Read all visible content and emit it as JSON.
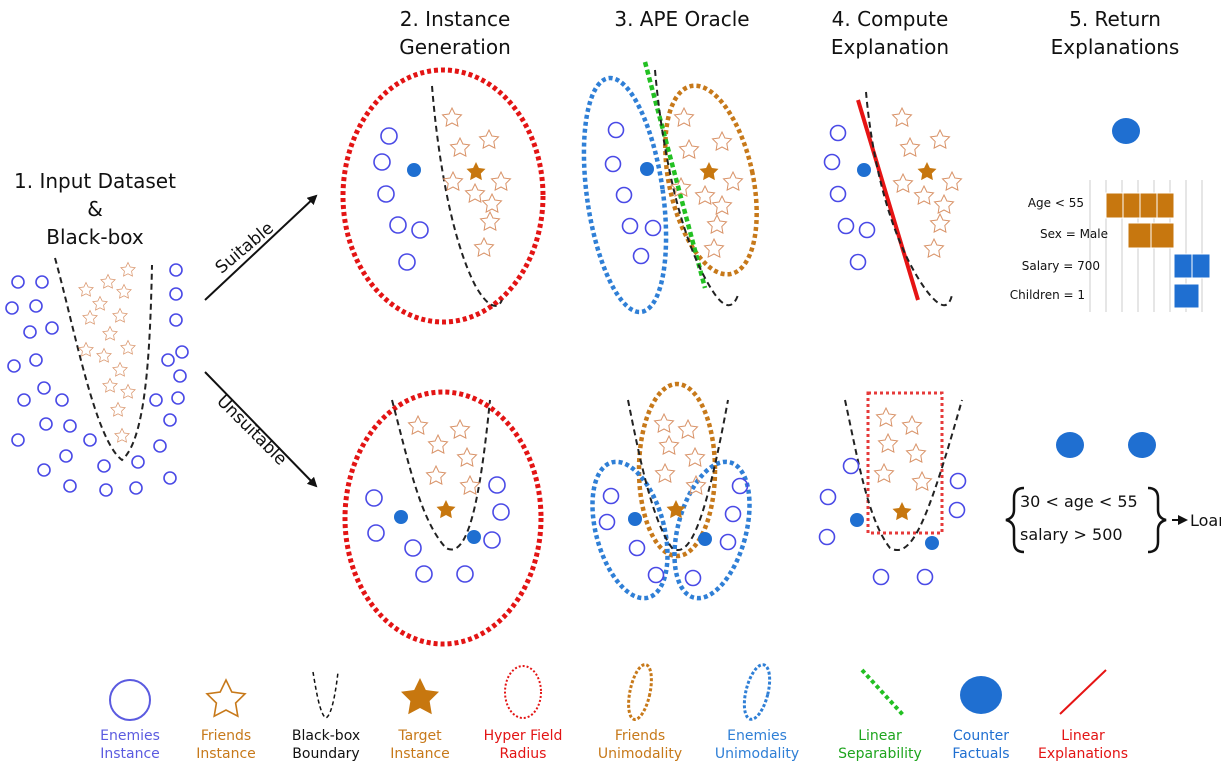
{
  "steps": {
    "s1": [
      "1. Input Dataset",
      "&",
      "Black-box"
    ],
    "s2": [
      "2. Instance",
      "Generation"
    ],
    "s3": [
      "3. APE Oracle"
    ],
    "s4": [
      "4. Compute",
      "Explanation"
    ],
    "s5": [
      "5. Return",
      "Explanations"
    ]
  },
  "arrows": {
    "suitable": "Suitable",
    "unsuitable": "Unsuitable"
  },
  "feature_bars": {
    "labels": [
      "Age < 55",
      "Sex = Male",
      "Salary = 700",
      "Children = 1"
    ],
    "bar_classes": [
      "friend",
      "friend",
      "enemy",
      "enemy"
    ]
  },
  "rule": {
    "conditions": [
      "30 < age < 55",
      "salary > 500"
    ],
    "outcome": "Loan"
  },
  "legend": [
    {
      "lines": [
        "Enemies",
        "Instance"
      ],
      "color": "#5b5be0",
      "icon": "enemy-circle-icon"
    },
    {
      "lines": [
        "Friends",
        "Instance"
      ],
      "color": "#c7791a",
      "icon": "friend-star-icon"
    },
    {
      "lines": [
        "Black-box",
        "Boundary"
      ],
      "color": "#111111",
      "icon": "black-box-boundary-icon"
    },
    {
      "lines": [
        "Target",
        "Instance"
      ],
      "color": "#c7791a",
      "icon": "target-star-icon"
    },
    {
      "lines": [
        "Hyper Field",
        "Radius"
      ],
      "color": "#e31414",
      "icon": "hyper-field-radius-icon"
    },
    {
      "lines": [
        "Friends",
        "Unimodality"
      ],
      "color": "#c7791a",
      "icon": "friends-unimodality-icon"
    },
    {
      "lines": [
        "Enemies",
        "Unimodality"
      ],
      "color": "#2f7fd6",
      "icon": "enemies-unimodality-icon"
    },
    {
      "lines": [
        "Linear",
        "Separability"
      ],
      "color": "#1ea51e",
      "icon": "linear-separability-icon"
    },
    {
      "lines": [
        "Counter",
        "Factuals"
      ],
      "color": "#1f6fd1",
      "icon": "counter-factual-icon"
    },
    {
      "lines": [
        "Linear",
        "Explanations"
      ],
      "color": "#e31414",
      "icon": "linear-explanation-icon"
    }
  ]
}
